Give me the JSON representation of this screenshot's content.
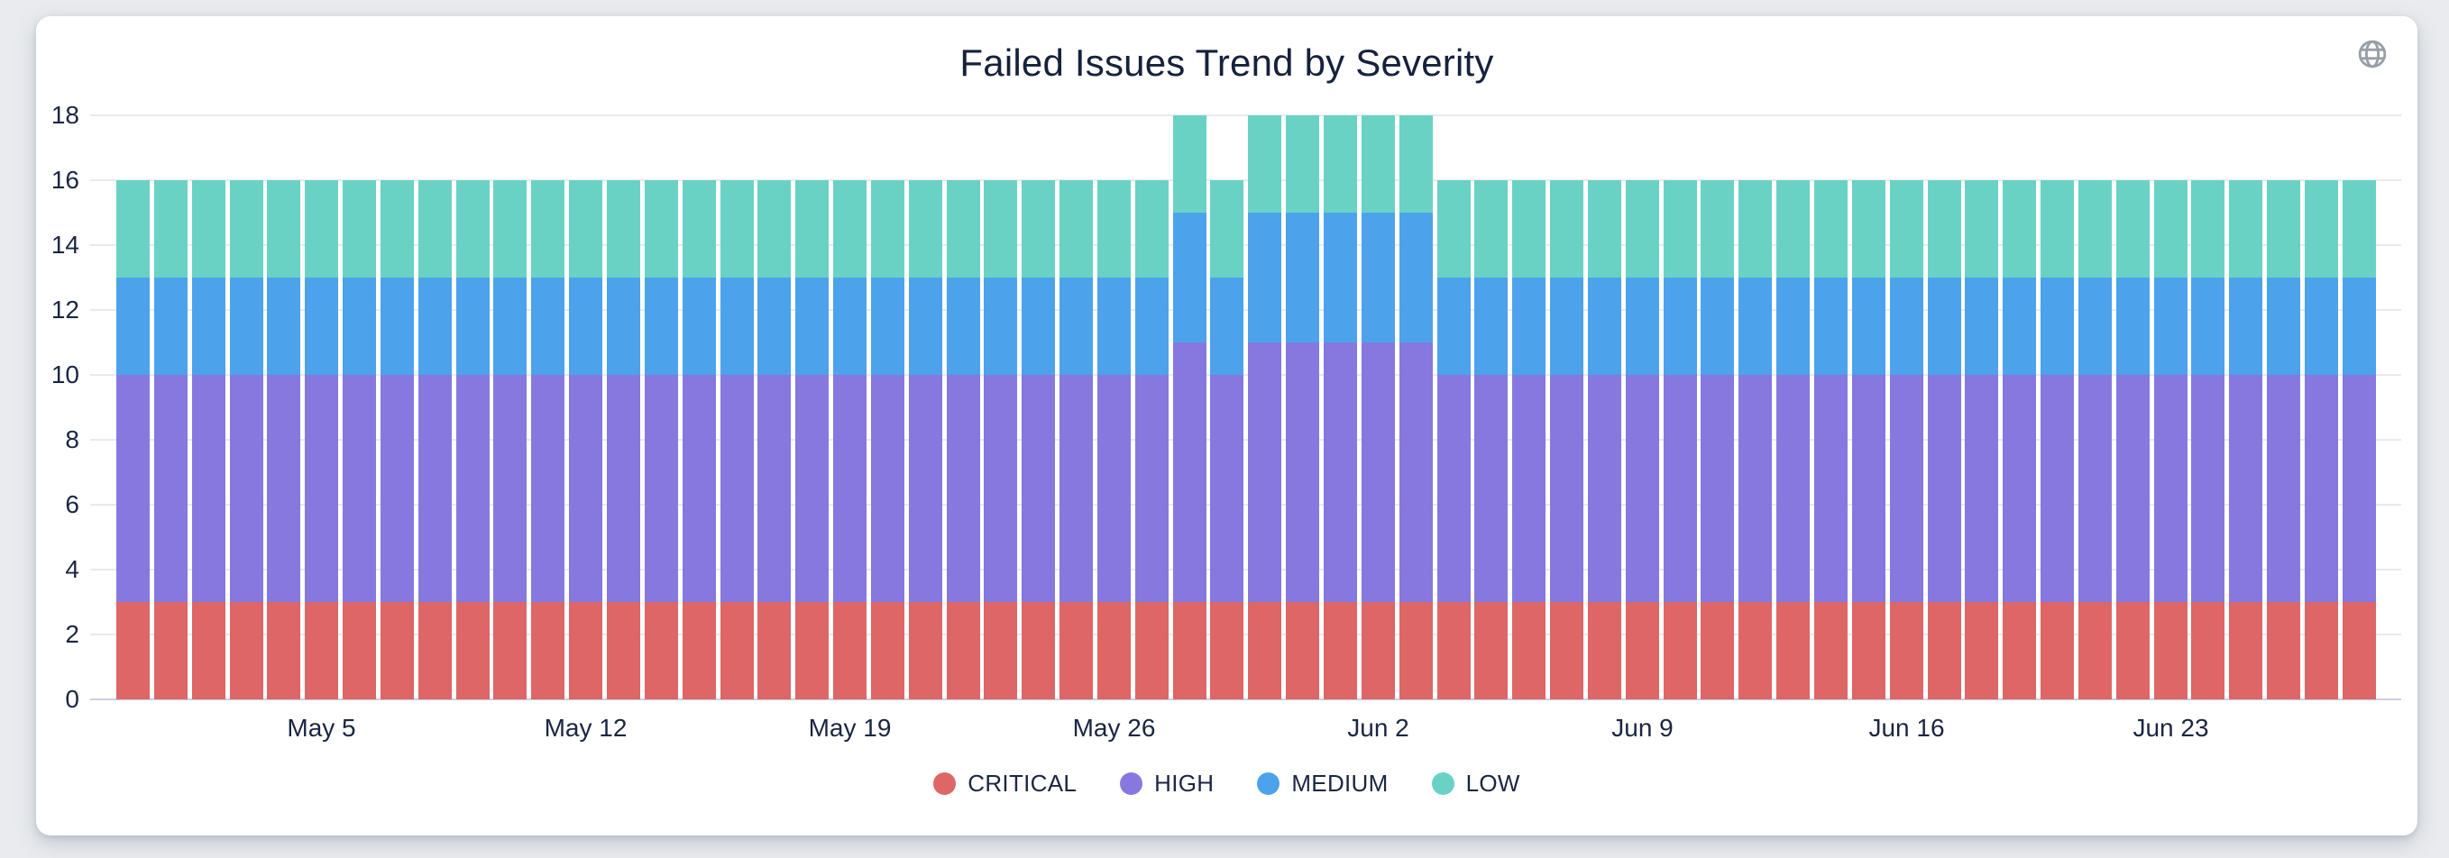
{
  "card": {
    "title": "Failed Issues Trend by Severity",
    "globe_icon": "globe-icon"
  },
  "colors": {
    "critical": "#de6666",
    "high": "#8778e0",
    "medium": "#4da2ec",
    "low": "#69d2c5",
    "grid": "#e9e9ee",
    "baseline": "#c9cfdf",
    "text": "#1b2642",
    "card_bg": "#ffffff",
    "page_bg": "#e9ebee",
    "globe": "#989fa8"
  },
  "chart_data": {
    "type": "bar",
    "stacked": true,
    "title": "Failed Issues Trend by Severity",
    "xlabel": "",
    "ylabel": "",
    "ylim": [
      0,
      18
    ],
    "ytick_step": 2,
    "grid": true,
    "legend_position": "bottom",
    "x": [
      "Apr 30",
      "May 1",
      "May 2",
      "May 3",
      "May 4",
      "May 5",
      "May 6",
      "May 7",
      "May 8",
      "May 9",
      "May 10",
      "May 11",
      "May 12",
      "May 13",
      "May 14",
      "May 15",
      "May 16",
      "May 17",
      "May 18",
      "May 19",
      "May 20",
      "May 21",
      "May 22",
      "May 23",
      "May 24",
      "May 25",
      "May 26",
      "May 27",
      "May 28",
      "May 29",
      "May 30",
      "May 31",
      "Jun 1",
      "Jun 2",
      "Jun 3",
      "Jun 4",
      "Jun 5",
      "Jun 6",
      "Jun 7",
      "Jun 8",
      "Jun 9",
      "Jun 10",
      "Jun 11",
      "Jun 12",
      "Jun 13",
      "Jun 14",
      "Jun 15",
      "Jun 16",
      "Jun 17",
      "Jun 18",
      "Jun 19",
      "Jun 20",
      "Jun 21",
      "Jun 22",
      "Jun 23",
      "Jun 24",
      "Jun 25",
      "Jun 26",
      "Jun 27",
      "Jun 28"
    ],
    "x_ticks": [
      {
        "index": 5,
        "label": "May 5"
      },
      {
        "index": 12,
        "label": "May 12"
      },
      {
        "index": 19,
        "label": "May 19"
      },
      {
        "index": 26,
        "label": "May 26"
      },
      {
        "index": 33,
        "label": "Jun 2"
      },
      {
        "index": 40,
        "label": "Jun 9"
      },
      {
        "index": 47,
        "label": "Jun 16"
      },
      {
        "index": 54,
        "label": "Jun 23"
      }
    ],
    "series": [
      {
        "name": "CRITICAL",
        "color": "#de6666",
        "values": [
          3,
          3,
          3,
          3,
          3,
          3,
          3,
          3,
          3,
          3,
          3,
          3,
          3,
          3,
          3,
          3,
          3,
          3,
          3,
          3,
          3,
          3,
          3,
          3,
          3,
          3,
          3,
          3,
          3,
          3,
          3,
          3,
          3,
          3,
          3,
          3,
          3,
          3,
          3,
          3,
          3,
          3,
          3,
          3,
          3,
          3,
          3,
          3,
          3,
          3,
          3,
          3,
          3,
          3,
          3,
          3,
          3,
          3,
          3,
          3
        ]
      },
      {
        "name": "HIGH",
        "color": "#8778e0",
        "values": [
          7,
          7,
          7,
          7,
          7,
          7,
          7,
          7,
          7,
          7,
          7,
          7,
          7,
          7,
          7,
          7,
          7,
          7,
          7,
          7,
          7,
          7,
          7,
          7,
          7,
          7,
          7,
          7,
          8,
          7,
          8,
          8,
          8,
          8,
          8,
          7,
          7,
          7,
          7,
          7,
          7,
          7,
          7,
          7,
          7,
          7,
          7,
          7,
          7,
          7,
          7,
          7,
          7,
          7,
          7,
          7,
          7,
          7,
          7,
          7
        ]
      },
      {
        "name": "MEDIUM",
        "color": "#4da2ec",
        "values": [
          3,
          3,
          3,
          3,
          3,
          3,
          3,
          3,
          3,
          3,
          3,
          3,
          3,
          3,
          3,
          3,
          3,
          3,
          3,
          3,
          3,
          3,
          3,
          3,
          3,
          3,
          3,
          3,
          4,
          3,
          4,
          4,
          4,
          4,
          4,
          3,
          3,
          3,
          3,
          3,
          3,
          3,
          3,
          3,
          3,
          3,
          3,
          3,
          3,
          3,
          3,
          3,
          3,
          3,
          3,
          3,
          3,
          3,
          3,
          3
        ]
      },
      {
        "name": "LOW",
        "color": "#69d2c5",
        "values": [
          3,
          3,
          3,
          3,
          3,
          3,
          3,
          3,
          3,
          3,
          3,
          3,
          3,
          3,
          3,
          3,
          3,
          3,
          3,
          3,
          3,
          3,
          3,
          3,
          3,
          3,
          3,
          3,
          3,
          3,
          3,
          3,
          3,
          3,
          3,
          3,
          3,
          3,
          3,
          3,
          3,
          3,
          3,
          3,
          3,
          3,
          3,
          3,
          3,
          3,
          3,
          3,
          3,
          3,
          3,
          3,
          3,
          3,
          3,
          3
        ]
      }
    ]
  }
}
